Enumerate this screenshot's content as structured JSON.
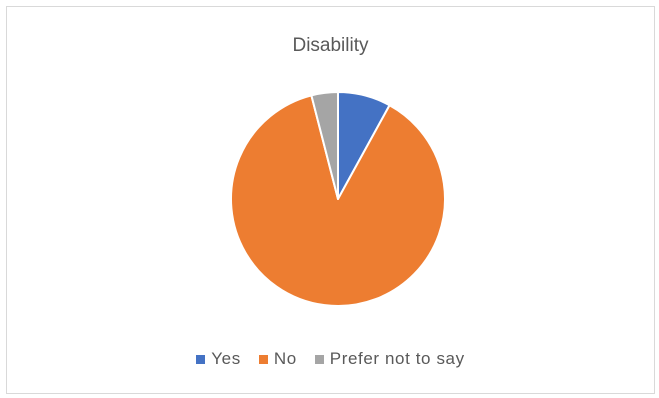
{
  "chart_data": {
    "type": "pie",
    "title": "Disability",
    "categories": [
      "Yes",
      "No",
      "Prefer not to say"
    ],
    "values": [
      8,
      88,
      4
    ],
    "colors": [
      "#4472c4",
      "#ed7d31",
      "#a5a5a5"
    ],
    "start_angle_deg": 0,
    "direction": "clockwise",
    "legend_position": "bottom"
  }
}
